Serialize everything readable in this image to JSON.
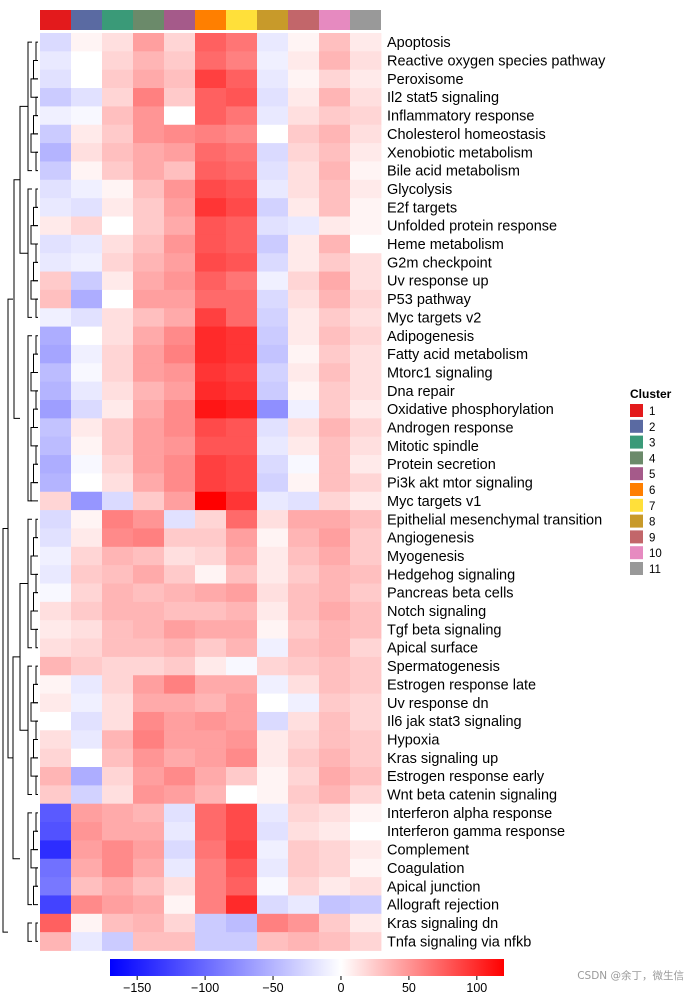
{
  "chart_data": {
    "type": "heatmap",
    "title": "",
    "cluster_legend_title": "Cluster",
    "clusters": [
      {
        "label": "1",
        "color": "#e31a1c"
      },
      {
        "label": "2",
        "color": "#5a6aa2"
      },
      {
        "label": "3",
        "color": "#3a9a78"
      },
      {
        "label": "4",
        "color": "#6b8a6a"
      },
      {
        "label": "5",
        "color": "#a55a8a"
      },
      {
        "label": "6",
        "color": "#ff7f00"
      },
      {
        "label": "7",
        "color": "#ffe03a"
      },
      {
        "label": "8",
        "color": "#c89a2a"
      },
      {
        "label": "9",
        "color": "#c2666a"
      },
      {
        "label": "10",
        "color": "#e68ac0"
      },
      {
        "label": "11",
        "color": "#999999"
      }
    ],
    "rows": [
      "Apoptosis",
      "Reactive oxygen species pathway",
      "Peroxisome",
      "Il2 stat5 signaling",
      "Inflammatory response",
      "Cholesterol homeostasis",
      "Xenobiotic metabolism",
      "Bile acid metabolism",
      "Glycolysis",
      "E2f targets",
      "Unfolded protein response",
      "Heme metabolism",
      "G2m checkpoint",
      "Uv response up",
      "P53 pathway",
      "Myc targets v2",
      "Adipogenesis",
      "Fatty acid metabolism",
      "Mtorc1 signaling",
      "Dna repair",
      "Oxidative phosphorylation",
      "Androgen response",
      "Mitotic spindle",
      "Protein secretion",
      "Pi3k akt mtor signaling",
      "Myc targets v1",
      "Epithelial mesenchymal transition",
      "Angiogenesis",
      "Myogenesis",
      "Hedgehog signaling",
      "Pancreas beta cells",
      "Notch signaling",
      "Tgf beta signaling",
      "Apical surface",
      "Spermatogenesis",
      "Estrogen response late",
      "Uv response dn",
      "Il6 jak stat3 signaling",
      "Hypoxia",
      "Kras signaling up",
      "Estrogen response early",
      "Wnt beta catenin signaling",
      "Interferon alpha response",
      "Interferon gamma response",
      "Complement",
      "Coagulation",
      "Apical junction",
      "Allograft rejection",
      "Kras signaling dn",
      "Tnfa signaling via nfkb"
    ],
    "values": [
      [
        -25,
        5,
        15,
        45,
        20,
        75,
        65,
        -15,
        5,
        30,
        10
      ],
      [
        -15,
        0,
        20,
        35,
        25,
        70,
        60,
        -10,
        10,
        35,
        15
      ],
      [
        -20,
        0,
        25,
        40,
        30,
        90,
        75,
        -15,
        5,
        20,
        10
      ],
      [
        -35,
        -20,
        20,
        60,
        25,
        75,
        80,
        -20,
        10,
        35,
        15
      ],
      [
        -10,
        -5,
        30,
        50,
        0,
        75,
        65,
        -15,
        15,
        25,
        20
      ],
      [
        -35,
        10,
        25,
        50,
        55,
        60,
        55,
        0,
        25,
        35,
        15
      ],
      [
        -50,
        15,
        30,
        40,
        45,
        70,
        65,
        -25,
        20,
        30,
        10
      ],
      [
        -35,
        5,
        25,
        40,
        30,
        75,
        70,
        -20,
        15,
        35,
        5
      ],
      [
        -20,
        -10,
        5,
        30,
        50,
        85,
        80,
        -15,
        15,
        30,
        10
      ],
      [
        -15,
        -20,
        10,
        25,
        45,
        95,
        85,
        -30,
        10,
        30,
        5
      ],
      [
        10,
        20,
        0,
        25,
        40,
        80,
        75,
        -20,
        -15,
        10,
        5
      ],
      [
        -20,
        -15,
        15,
        30,
        50,
        80,
        75,
        -35,
        10,
        35,
        0
      ],
      [
        -15,
        -10,
        20,
        35,
        45,
        85,
        80,
        -25,
        10,
        25,
        15
      ],
      [
        25,
        -35,
        10,
        40,
        50,
        75,
        65,
        -10,
        20,
        40,
        15
      ],
      [
        30,
        -55,
        0,
        45,
        45,
        70,
        70,
        -25,
        15,
        35,
        20
      ],
      [
        -10,
        -20,
        15,
        30,
        40,
        90,
        70,
        -30,
        10,
        25,
        15
      ],
      [
        -55,
        0,
        15,
        40,
        55,
        100,
        95,
        -35,
        10,
        30,
        20
      ],
      [
        -60,
        -10,
        20,
        45,
        60,
        100,
        95,
        -40,
        5,
        25,
        15
      ],
      [
        -45,
        -5,
        20,
        45,
        50,
        95,
        90,
        -30,
        10,
        30,
        15
      ],
      [
        -50,
        -15,
        15,
        35,
        45,
        100,
        95,
        -35,
        5,
        25,
        15
      ],
      [
        -65,
        -25,
        10,
        40,
        55,
        110,
        105,
        -75,
        -10,
        25,
        10
      ],
      [
        -40,
        10,
        25,
        45,
        55,
        85,
        80,
        -20,
        15,
        35,
        20
      ],
      [
        -45,
        5,
        25,
        45,
        50,
        80,
        80,
        -15,
        10,
        30,
        15
      ],
      [
        -55,
        -5,
        20,
        45,
        55,
        90,
        85,
        -25,
        -5,
        30,
        10
      ],
      [
        -50,
        0,
        15,
        40,
        55,
        90,
        85,
        -30,
        5,
        30,
        20
      ],
      [
        20,
        -70,
        -25,
        25,
        45,
        120,
        95,
        -15,
        -20,
        20,
        10
      ],
      [
        -25,
        5,
        60,
        50,
        -20,
        20,
        70,
        15,
        40,
        40,
        30
      ],
      [
        -20,
        10,
        55,
        60,
        25,
        25,
        45,
        5,
        35,
        45,
        25
      ],
      [
        -10,
        20,
        35,
        30,
        15,
        20,
        40,
        10,
        30,
        40,
        25
      ],
      [
        -15,
        25,
        30,
        40,
        25,
        5,
        30,
        10,
        25,
        35,
        30
      ],
      [
        -5,
        20,
        35,
        30,
        35,
        40,
        45,
        15,
        30,
        35,
        25
      ],
      [
        15,
        25,
        35,
        35,
        30,
        30,
        35,
        10,
        30,
        40,
        30
      ],
      [
        10,
        15,
        30,
        35,
        45,
        40,
        40,
        5,
        25,
        35,
        30
      ],
      [
        15,
        20,
        30,
        30,
        35,
        25,
        35,
        -10,
        30,
        35,
        20
      ],
      [
        35,
        25,
        20,
        20,
        25,
        10,
        -5,
        20,
        25,
        30,
        25
      ],
      [
        5,
        -15,
        20,
        45,
        60,
        40,
        40,
        -10,
        15,
        30,
        25
      ],
      [
        10,
        -10,
        15,
        40,
        40,
        35,
        45,
        0,
        -10,
        25,
        20
      ],
      [
        0,
        -20,
        15,
        55,
        45,
        50,
        45,
        -25,
        15,
        30,
        20
      ],
      [
        15,
        -15,
        35,
        60,
        45,
        45,
        50,
        10,
        20,
        30,
        25
      ],
      [
        20,
        0,
        30,
        50,
        40,
        45,
        55,
        10,
        25,
        35,
        25
      ],
      [
        35,
        -55,
        20,
        45,
        55,
        40,
        25,
        5,
        20,
        40,
        30
      ],
      [
        25,
        -30,
        15,
        50,
        45,
        35,
        0,
        5,
        25,
        35,
        20
      ],
      [
        -110,
        45,
        40,
        35,
        -20,
        70,
        85,
        -15,
        20,
        15,
        5
      ],
      [
        -115,
        50,
        40,
        40,
        -15,
        70,
        85,
        -20,
        15,
        10,
        0
      ],
      [
        -140,
        45,
        55,
        45,
        -25,
        65,
        90,
        -10,
        25,
        20,
        10
      ],
      [
        -95,
        40,
        55,
        40,
        -15,
        60,
        80,
        -15,
        25,
        20,
        5
      ],
      [
        -90,
        30,
        40,
        30,
        15,
        60,
        75,
        -5,
        20,
        10,
        15
      ],
      [
        -125,
        55,
        45,
        40,
        5,
        60,
        100,
        -25,
        -15,
        -40,
        -35
      ],
      [
        75,
        5,
        30,
        35,
        20,
        -35,
        -45,
        60,
        50,
        25,
        10
      ],
      [
        35,
        -15,
        -35,
        30,
        30,
        -35,
        -35,
        30,
        35,
        30,
        20
      ]
    ],
    "colorbar": {
      "min": -170,
      "max": 120,
      "ticks": [
        -150,
        -100,
        -50,
        0,
        50,
        100
      ],
      "tick_labels": [
        "−150",
        "−100",
        "−50",
        "0",
        "50",
        "100"
      ]
    },
    "column_order": [
      "1",
      "2",
      "3",
      "4",
      "5",
      "6",
      "7",
      "8",
      "9",
      "10",
      "11"
    ]
  },
  "watermark": "CSDN @余丁，微生信"
}
